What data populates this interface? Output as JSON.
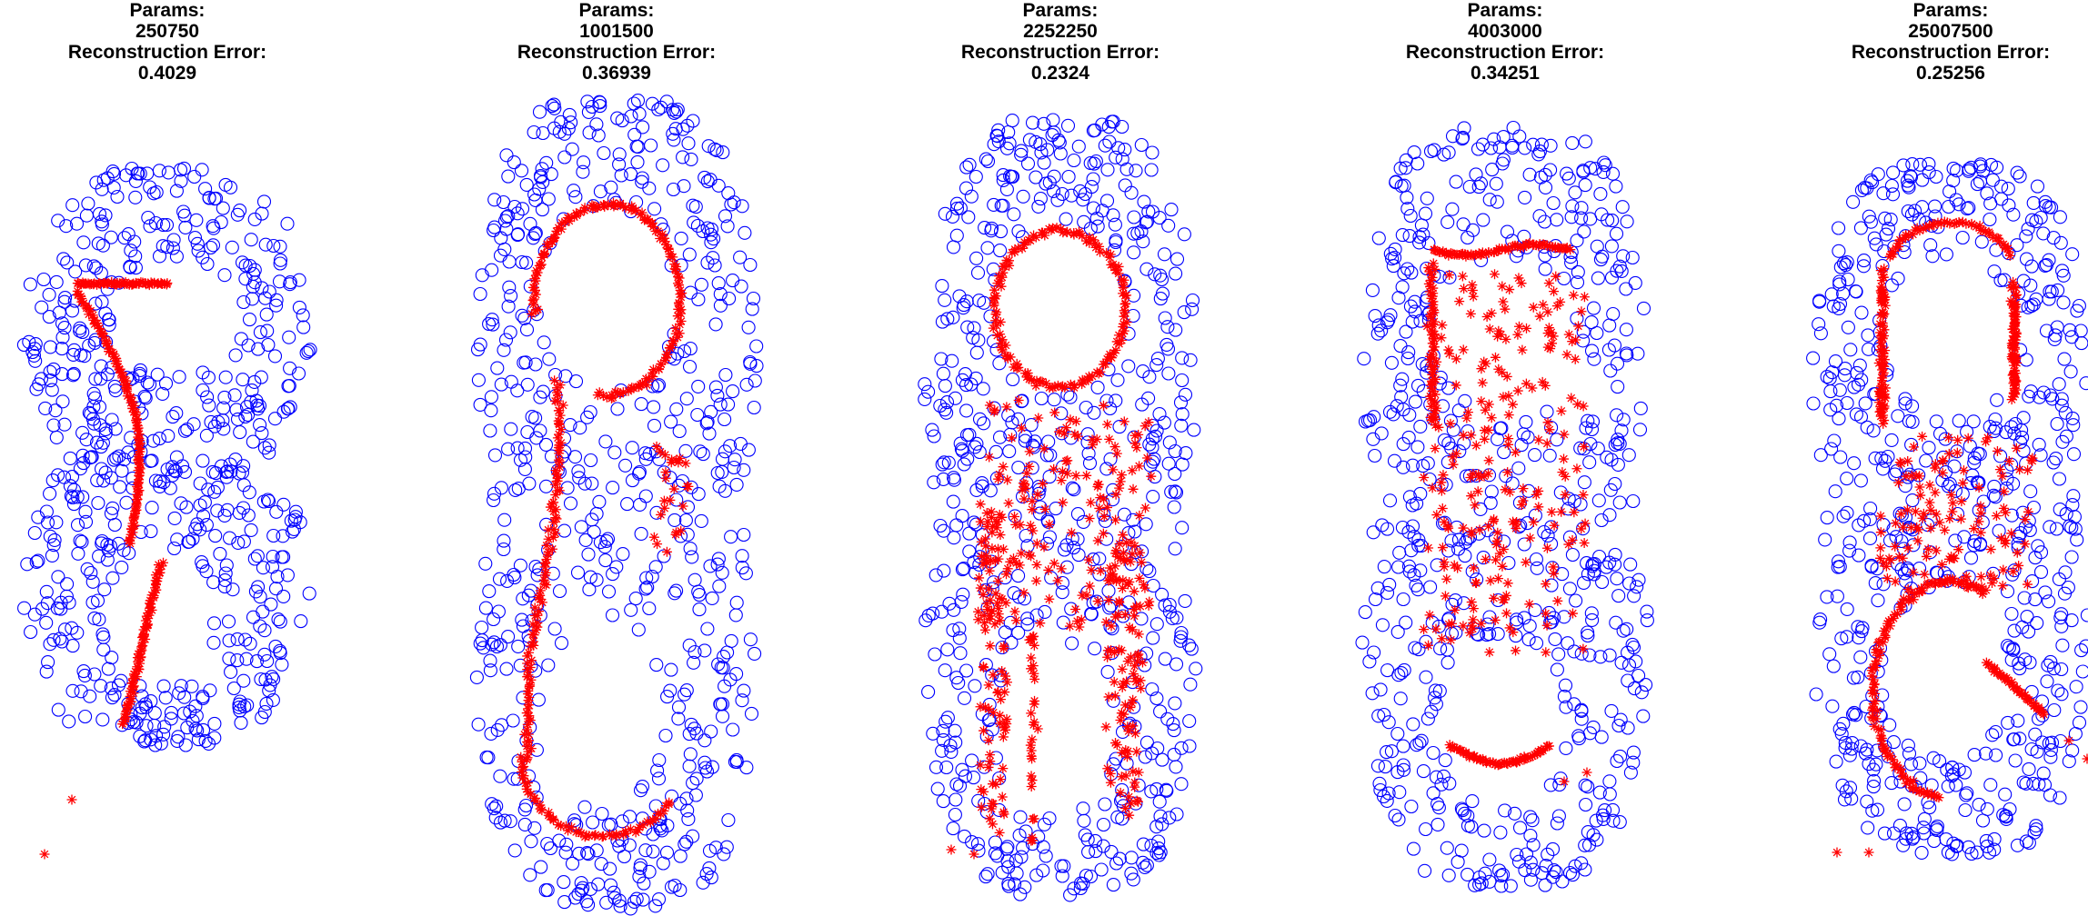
{
  "colors": {
    "original": "#0000ff",
    "reconstruction": "#ff0000",
    "background": "#ffffff",
    "text": "#000000"
  },
  "panel_labels": {
    "params": "Params:",
    "error": "Reconstruction Error:"
  },
  "chart_data": [
    {
      "type": "scatter",
      "params": "250750",
      "error": "0.4029",
      "variant": "one-loop",
      "series": [
        {
          "marker": "circle",
          "color": "#0000ff"
        },
        {
          "marker": "star",
          "color": "#ff0000"
        }
      ]
    },
    {
      "type": "scatter",
      "params": "1001500",
      "error": "0.36939",
      "variant": "open-arc",
      "series": [
        {
          "marker": "circle",
          "color": "#0000ff"
        },
        {
          "marker": "star",
          "color": "#ff0000"
        }
      ]
    },
    {
      "type": "scatter",
      "params": "2252250",
      "error": "0.2324",
      "variant": "two-loop",
      "series": [
        {
          "marker": "circle",
          "color": "#0000ff"
        },
        {
          "marker": "star",
          "color": "#ff0000"
        }
      ]
    },
    {
      "type": "scatter",
      "params": "4003000",
      "error": "0.34251",
      "variant": "scattered",
      "series": [
        {
          "marker": "circle",
          "color": "#0000ff"
        },
        {
          "marker": "star",
          "color": "#ff0000"
        }
      ]
    },
    {
      "type": "scatter",
      "params": "25007500",
      "error": "0.25256",
      "variant": "two-loop-b",
      "series": [
        {
          "marker": "circle",
          "color": "#0000ff"
        },
        {
          "marker": "star",
          "color": "#ff0000"
        }
      ]
    }
  ]
}
